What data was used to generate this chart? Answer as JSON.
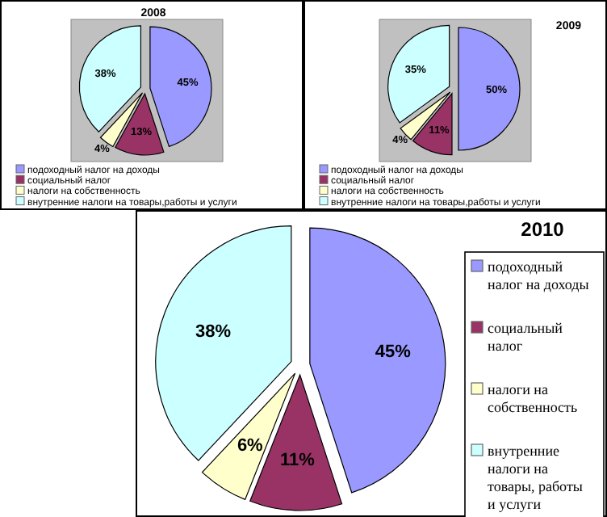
{
  "chart_data": [
    {
      "type": "pie",
      "title": "2008",
      "categories": [
        "подоходный налог на доходы",
        "социальный налог",
        "налоги на собственность",
        "внутренние налоги на товары,работы и услуги"
      ],
      "values": [
        45,
        13,
        4,
        38
      ],
      "value_labels": [
        "45%",
        "13%",
        "4%",
        "38%"
      ],
      "colors": [
        "#9999ff",
        "#993366",
        "#ffffcc",
        "#ccffff"
      ],
      "legend": "bottom"
    },
    {
      "type": "pie",
      "title": "2009",
      "categories": [
        "подоходный налог на доходы",
        "социальный налог",
        "налоги на собственность",
        "внутренние налоги на товары,работы и услуги"
      ],
      "values": [
        50,
        11,
        4,
        35
      ],
      "value_labels": [
        "50%",
        "11%",
        "4%",
        "35%"
      ],
      "colors": [
        "#9999ff",
        "#993366",
        "#ffffcc",
        "#ccffff"
      ],
      "legend": "bottom"
    },
    {
      "type": "pie",
      "title": "2010",
      "categories": [
        "подоходный налог на доходы",
        "социальный налог",
        "налоги на собственность",
        "внутренние налоги на товары, работы и услуги"
      ],
      "values": [
        45,
        11,
        6,
        38
      ],
      "value_labels": [
        "45%",
        "11%",
        "6%",
        "38%"
      ],
      "colors": [
        "#9999ff",
        "#993366",
        "#ffffcc",
        "#ccffff"
      ],
      "legend": "right"
    }
  ]
}
